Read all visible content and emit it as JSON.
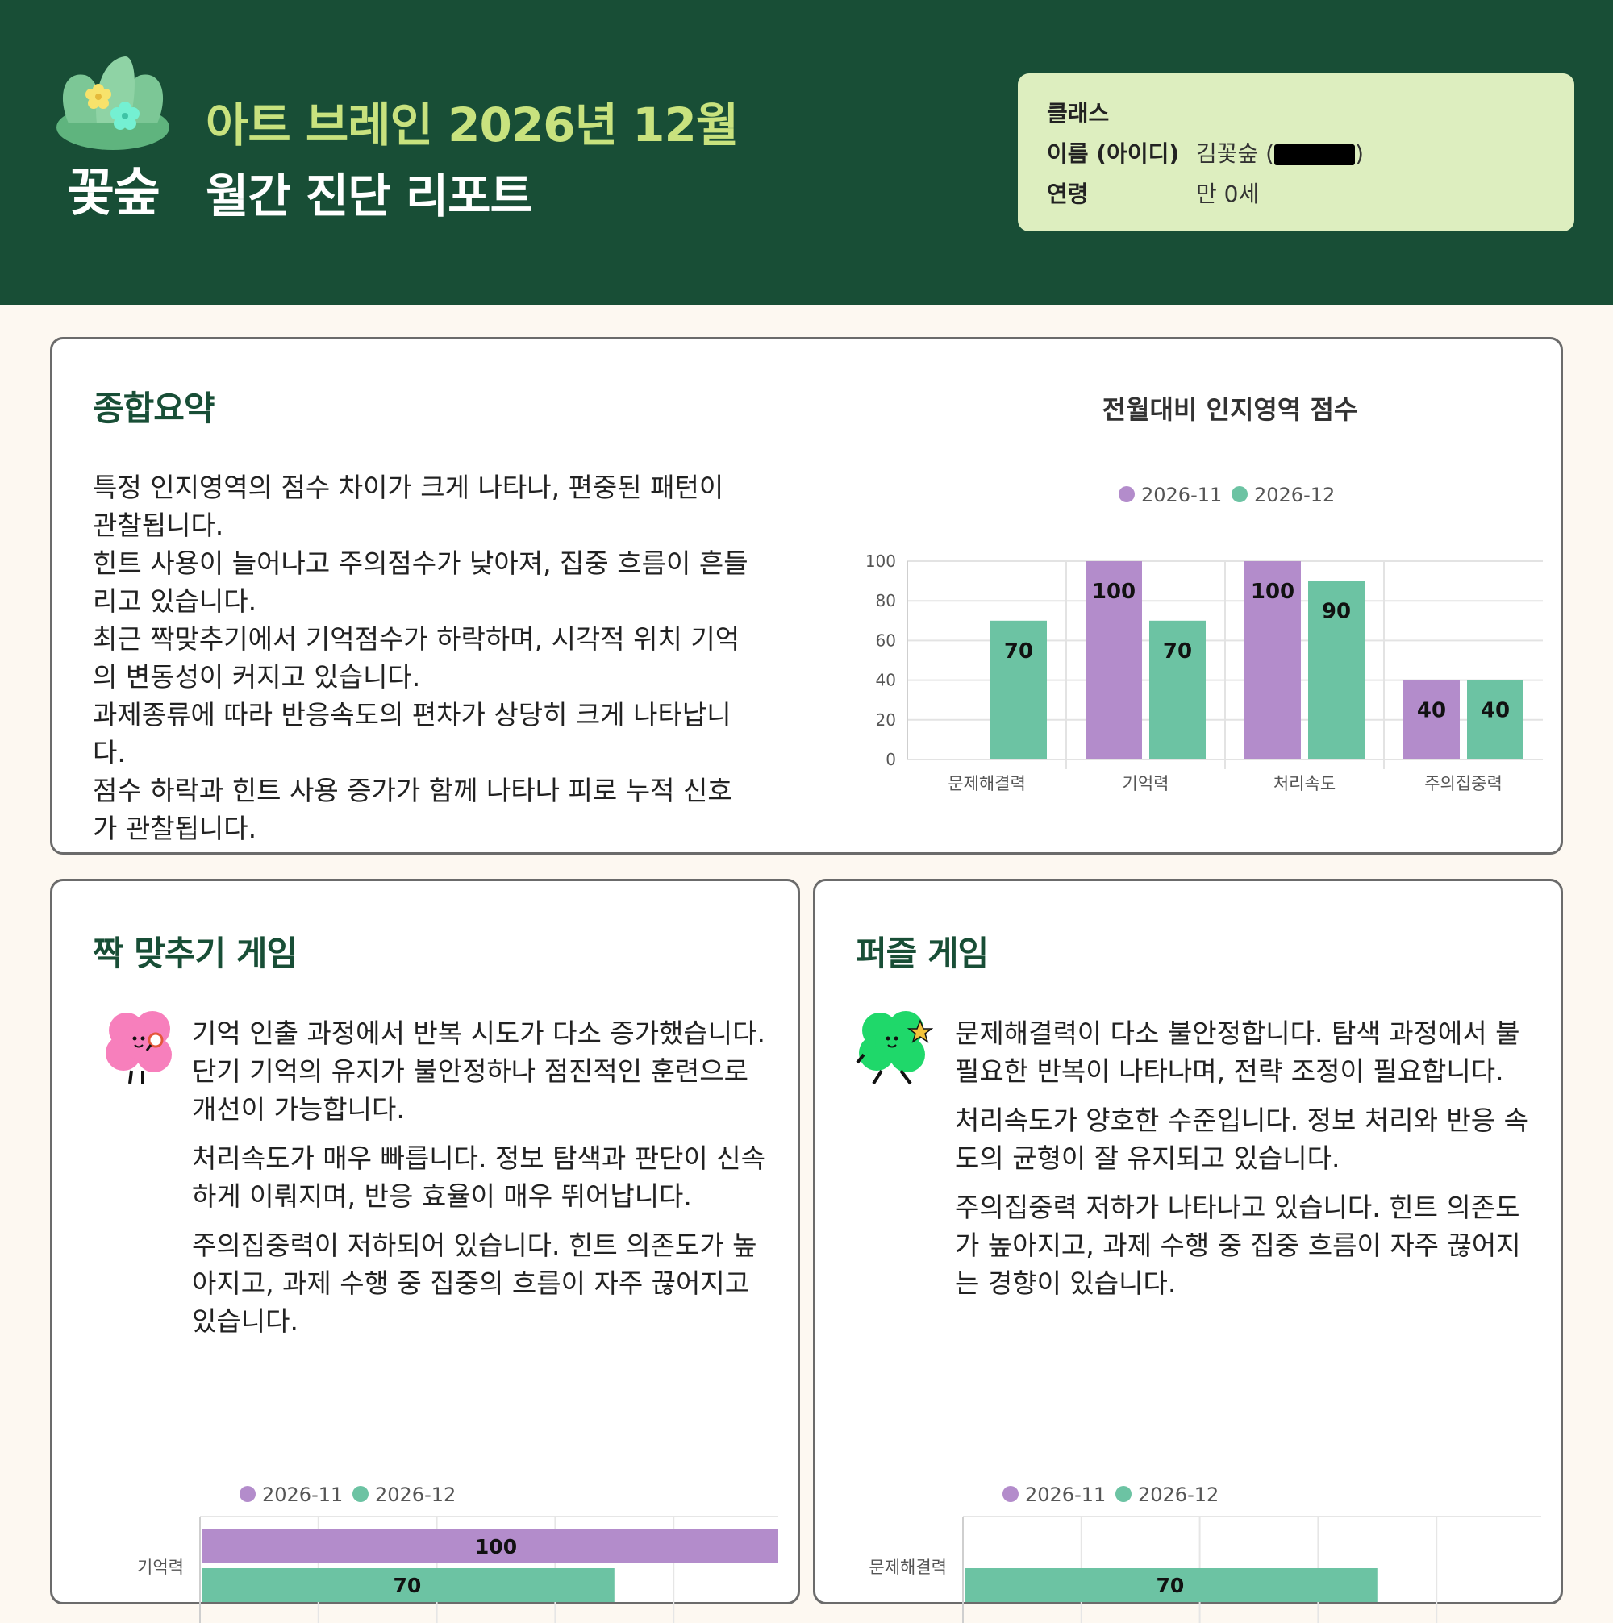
{
  "header": {
    "logo_text": "꽃숲",
    "title_line1": "아트 브레인 2026년 12월",
    "title_line2": "월간 진단 리포트",
    "info": {
      "class_label": "클래스",
      "class_value": "",
      "name_label": "이름 (아이디)",
      "name_value_prefix": "김꽃숲 (",
      "name_value_suffix": ")",
      "age_label": "연령",
      "age_value": "만 0세"
    }
  },
  "summary": {
    "title": "종합요약",
    "paragraphs": [
      "특정 인지영역의 점수 차이가 크게 나타나, 편중된 패턴이 관찰됩니다.",
      "힌트 사용이 늘어나고 주의점수가 낮아져, 집중 흐름이 흔들리고 있습니다.",
      "최근 짝맞추기에서 기억점수가 하락하며, 시각적 위치 기억의 변동성이 커지고 있습니다.",
      "과제종류에 따라 반응속도의 편차가 상당히 크게 나타납니다.",
      "점수 하락과 힌트 사용 증가가 함께 나타나 피로 누적 신호가 관찰됩니다."
    ]
  },
  "colors": {
    "prev": "#b38ccb",
    "curr": "#6cc3a3",
    "brand": "#184e36"
  },
  "chart_data": [
    {
      "type": "bar",
      "title": "전월대비 인지영역 점수",
      "categories": [
        "문제해결력",
        "기억력",
        "처리속도",
        "주의집중력"
      ],
      "series": [
        {
          "name": "2026-11",
          "values": [
            null,
            100,
            100,
            40
          ]
        },
        {
          "name": "2026-12",
          "values": [
            70,
            70,
            90,
            40
          ]
        }
      ],
      "ylim": [
        0,
        100
      ],
      "yticks": [
        0,
        20,
        40,
        60,
        80,
        100
      ],
      "legend": "top-center",
      "grid": true
    },
    {
      "type": "bar",
      "orientation": "horizontal",
      "categories": [
        "기억력"
      ],
      "series": [
        {
          "name": "2026-11",
          "values": [
            100
          ]
        },
        {
          "name": "2026-12",
          "values": [
            70
          ]
        }
      ],
      "xlim": [
        0,
        100
      ],
      "legend": "top-center",
      "grid": true
    },
    {
      "type": "bar",
      "orientation": "horizontal",
      "categories": [
        "문제해결력"
      ],
      "series": [
        {
          "name": "2026-11",
          "values": [
            null
          ]
        },
        {
          "name": "2026-12",
          "values": [
            70
          ]
        }
      ],
      "xlim": [
        0,
        100
      ],
      "legend": "top-center",
      "grid": true
    }
  ],
  "memory_game": {
    "title": "짝 맞추기 게임",
    "mascot_icon": "pink-flower-mascot-icon",
    "paragraphs": [
      "기억 인출 과정에서 반복 시도가 다소 증가했습니다. 단기 기억의 유지가 불안정하나 점진적인 훈련으로 개선이 가능합니다.",
      "처리속도가 매우 빠릅니다. 정보 탐색과 판단이 신속하게 이뤄지며, 반응 효율이 매우 뛰어납니다.",
      "주의집중력이 저하되어 있습니다. 힌트 의존도가 높아지고, 과제 수행 중 집중의 흐름이 자주 끊어지고 있습니다."
    ]
  },
  "puzzle_game": {
    "title": "퍼즐 게임",
    "mascot_icon": "green-clover-mascot-icon",
    "paragraphs": [
      "문제해결력이 다소 불안정합니다. 탐색 과정에서 불필요한 반복이 나타나며, 전략 조정이 필요합니다.",
      "처리속도가 양호한 수준입니다. 정보 처리와 반응 속도의 균형이 잘 유지되고 있습니다.",
      "주의집중력 저하가 나타나고 있습니다. 힌트 의존도가 높아지고, 과제 수행 중 집중 흐름이 자주 끊어지는 경향이 있습니다."
    ]
  }
}
